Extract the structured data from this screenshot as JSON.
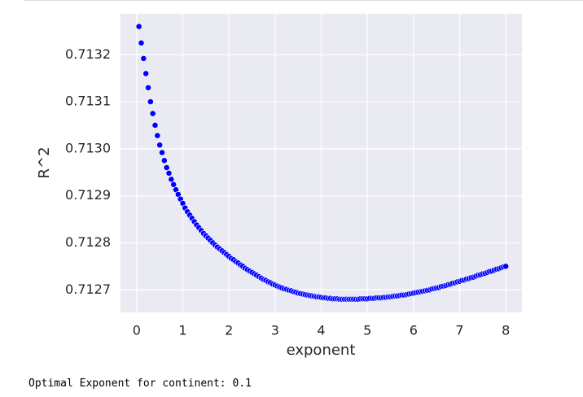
{
  "chart_data": {
    "type": "scatter",
    "xlabel": "exponent",
    "ylabel": "R^2",
    "color": "#0000ff",
    "grid": true,
    "xlim": [
      -0.35,
      8.35
    ],
    "ylim": [
      0.712652,
      0.713287
    ],
    "xticks": [
      0,
      1,
      2,
      3,
      4,
      5,
      6,
      7,
      8
    ],
    "yticks": [
      0.7127,
      0.7128,
      0.7129,
      {
        "value": 0.713,
        "label": "0.7130"
      },
      0.7131,
      0.7132
    ],
    "x": [
      0.05,
      0.1,
      0.15,
      0.2,
      0.25,
      0.3,
      0.35,
      0.4,
      0.45,
      0.5,
      0.55,
      0.6,
      0.65,
      0.7,
      0.75,
      0.8,
      0.85,
      0.9,
      0.95,
      1.0,
      1.05,
      1.1,
      1.15,
      1.2,
      1.25,
      1.3,
      1.35,
      1.4,
      1.45,
      1.5,
      1.55,
      1.6,
      1.65,
      1.7,
      1.75,
      1.8,
      1.85,
      1.9,
      1.95,
      2.0,
      2.05,
      2.1,
      2.15,
      2.2,
      2.25,
      2.3,
      2.35,
      2.4,
      2.45,
      2.5,
      2.55,
      2.6,
      2.65,
      2.7,
      2.75,
      2.8,
      2.85,
      2.9,
      2.95,
      3.0,
      3.05,
      3.1,
      3.15,
      3.2,
      3.25,
      3.3,
      3.35,
      3.4,
      3.45,
      3.5,
      3.55,
      3.6,
      3.65,
      3.7,
      3.75,
      3.8,
      3.85,
      3.9,
      3.95,
      4.0,
      4.05,
      4.1,
      4.15,
      4.2,
      4.25,
      4.3,
      4.35,
      4.4,
      4.45,
      4.5,
      4.55,
      4.6,
      4.65,
      4.7,
      4.75,
      4.8,
      4.85,
      4.9,
      4.95,
      5.0,
      5.05,
      5.1,
      5.15,
      5.2,
      5.25,
      5.3,
      5.35,
      5.4,
      5.45,
      5.5,
      5.55,
      5.6,
      5.65,
      5.7,
      5.75,
      5.8,
      5.85,
      5.9,
      5.95,
      6.0,
      6.05,
      6.1,
      6.15,
      6.2,
      6.25,
      6.3,
      6.35,
      6.4,
      6.45,
      6.5,
      6.55,
      6.6,
      6.65,
      6.7,
      6.75,
      6.8,
      6.85,
      6.9,
      6.95,
      7.0,
      7.05,
      7.1,
      7.15,
      7.2,
      7.25,
      7.3,
      7.35,
      7.4,
      7.45,
      7.5,
      7.55,
      7.6,
      7.65,
      7.7,
      7.75,
      7.8,
      7.85,
      7.9,
      7.95,
      8.0
    ],
    "values": [
      0.71326,
      0.713225,
      0.713192,
      0.71316,
      0.71313,
      0.7131,
      0.713075,
      0.71305,
      0.713028,
      0.713008,
      0.712992,
      0.712975,
      0.71296,
      0.712948,
      0.712935,
      0.712924,
      0.712913,
      0.712903,
      0.712893,
      0.712884,
      0.712874,
      0.712866,
      0.712859,
      0.712852,
      0.712845,
      0.712838,
      0.712832,
      0.712826,
      0.71282,
      0.712815,
      0.71281,
      0.712805,
      0.7128,
      0.712795,
      0.712791,
      0.712787,
      0.712783,
      0.712779,
      0.712775,
      0.712771,
      0.712767,
      0.712764,
      0.71276,
      0.712757,
      0.712753,
      0.71275,
      0.712746,
      0.712743,
      0.71274,
      0.712737,
      0.712734,
      0.712731,
      0.712728,
      0.712725,
      0.712722,
      0.71272,
      0.712717,
      0.712715,
      0.712712,
      0.71271,
      0.712708,
      0.712706,
      0.712704,
      0.712702,
      0.712701,
      0.712699,
      0.712698,
      0.712696,
      0.712695,
      0.712693,
      0.712692,
      0.712691,
      0.71269,
      0.712689,
      0.712688,
      0.712687,
      0.712686,
      0.712685,
      0.712685,
      0.712684,
      0.712683,
      0.712683,
      0.712682,
      0.712682,
      0.712681,
      0.712681,
      0.712681,
      0.71268,
      0.71268,
      0.71268,
      0.71268,
      0.71268,
      0.71268,
      0.71268,
      0.71268,
      0.71268,
      0.712681,
      0.712681,
      0.712681,
      0.712681,
      0.712682,
      0.712682,
      0.712682,
      0.712683,
      0.712683,
      0.712683,
      0.712684,
      0.712684,
      0.712685,
      0.712685,
      0.712686,
      0.712687,
      0.712687,
      0.712688,
      0.712689,
      0.712689,
      0.71269,
      0.712691,
      0.712692,
      0.712693,
      0.712694,
      0.712695,
      0.712696,
      0.712697,
      0.712698,
      0.712699,
      0.7127,
      0.712702,
      0.712703,
      0.712704,
      0.712705,
      0.712707,
      0.712708,
      0.712709,
      0.712711,
      0.712712,
      0.712714,
      0.712715,
      0.712717,
      0.712718,
      0.71272,
      0.712721,
      0.712723,
      0.712724,
      0.712726,
      0.712727,
      0.712729,
      0.712731,
      0.712732,
      0.712734,
      0.712735,
      0.712737,
      0.712739,
      0.71274,
      0.712742,
      0.712744,
      0.712745,
      0.712747,
      0.712749,
      0.71275
    ]
  },
  "output_text": "Optimal Exponent for continent: 0.1"
}
